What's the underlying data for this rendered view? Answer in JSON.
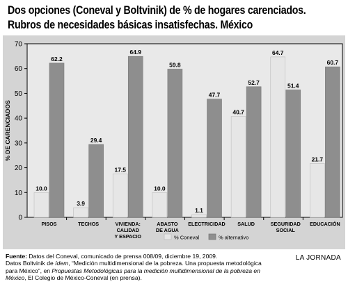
{
  "title": {
    "line1": "Dos opciones (Coneval y Boltvinik) de % de hogares carenciados.",
    "line2": "Rubros de necesidades básicas insatisfechas. México"
  },
  "chart_data": {
    "type": "bar",
    "categories": [
      [
        "PISOS"
      ],
      [
        "TECHOS"
      ],
      [
        "VIVIENDA:",
        "CALIDAD",
        "Y ESPACIO"
      ],
      [
        "ABASTO",
        "DE AGUA"
      ],
      [
        "ELECTRICIDAD"
      ],
      [
        "SALUD"
      ],
      [
        "SEGURIDAD",
        "SOCIAL"
      ],
      [
        "EDUCACIÓN"
      ]
    ],
    "series": [
      {
        "name": "% Coneval",
        "values": [
          10.0,
          3.9,
          17.5,
          10.0,
          1.1,
          40.7,
          64.7,
          21.7
        ],
        "color": "#e6e6e6"
      },
      {
        "name": "% alternativo",
        "values": [
          62.2,
          29.4,
          64.9,
          59.8,
          47.7,
          52.7,
          51.4,
          60.7
        ],
        "color": "#8e8e8e"
      }
    ],
    "data_labels": [
      [
        "10.0",
        "3.9",
        "17.5",
        "10.0",
        "1.1",
        "40.7",
        "64.7",
        "21.7"
      ],
      [
        "62.2",
        "29.4",
        "64.9",
        "59.8",
        "47.7",
        "52.7",
        "51.4",
        "60.7"
      ]
    ],
    "ylabel": "% DE CARENCIADOS",
    "ylim": [
      0,
      70
    ],
    "yticks": [
      0,
      10,
      20,
      30,
      40,
      50,
      60,
      70
    ],
    "grid": false,
    "legend_position": "bottom-center"
  },
  "source": {
    "label": "Fuente:",
    "line1_rest": " Datos del Coneval, comunicado de prensa 008/09, diciembre 19, 2009.",
    "line2_a": "Datos Boltvinik de ",
    "line2_b": "ídem",
    "line2_c": ", “Medición multidimensional de la pobreza. Una propuesta metodológica",
    "line3_a": "para México”, en ",
    "line3_b": "Propuestas Metodológicas para la medición multidimensional de la pobreza en",
    "line4_a": "México",
    "line4_b": ", El Colegio de México-Coneval (en prensa)."
  },
  "credit": "LA JORNADA"
}
